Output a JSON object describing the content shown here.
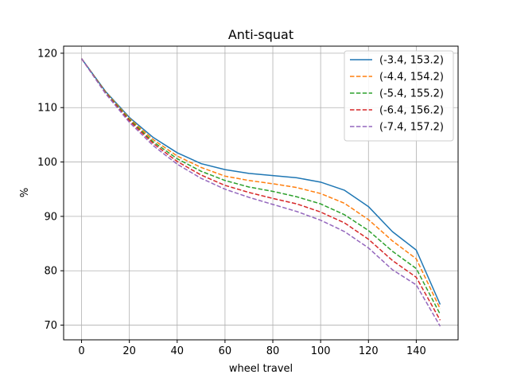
{
  "chart_data": {
    "type": "line",
    "title": "Anti-squat",
    "xlabel": "wheel travel",
    "ylabel": "%",
    "xlim": [
      -7.5,
      157.5
    ],
    "ylim": [
      67.3,
      121.3
    ],
    "xticks": [
      0,
      20,
      40,
      60,
      80,
      100,
      120,
      140
    ],
    "yticks": [
      70,
      80,
      90,
      100,
      110,
      120
    ],
    "grid": true,
    "legend_position": "upper-right",
    "x": [
      0,
      10,
      20,
      30,
      40,
      50,
      60,
      70,
      80,
      90,
      100,
      110,
      120,
      130,
      140,
      150
    ],
    "series": [
      {
        "name": "(-3.4, 153.2)",
        "color": "#1f77b4",
        "dash": "solid",
        "values": [
          119.0,
          113.0,
          108.2,
          104.5,
          101.7,
          99.7,
          98.6,
          97.9,
          97.5,
          97.1,
          96.3,
          94.8,
          91.8,
          87.2,
          83.8,
          73.8
        ]
      },
      {
        "name": "(-4.4, 154.2)",
        "color": "#ff7f0e",
        "dash": "dashed",
        "values": [
          119.0,
          112.9,
          108.0,
          104.1,
          101.1,
          99.0,
          97.4,
          96.6,
          96.0,
          95.3,
          94.2,
          92.4,
          89.4,
          85.5,
          82.2,
          73.0
        ]
      },
      {
        "name": "(-5.4, 155.2)",
        "color": "#2ca02c",
        "dash": "dashed",
        "values": [
          119.0,
          112.8,
          107.8,
          103.7,
          100.6,
          98.3,
          96.6,
          95.4,
          94.6,
          93.6,
          92.3,
          90.3,
          87.4,
          83.6,
          80.4,
          72.0
        ]
      },
      {
        "name": "(-6.4, 156.2)",
        "color": "#d62728",
        "dash": "dashed",
        "values": [
          119.0,
          112.7,
          107.6,
          103.4,
          100.1,
          97.6,
          95.7,
          94.4,
          93.3,
          92.3,
          90.8,
          88.8,
          85.8,
          81.9,
          78.8,
          70.9
        ]
      },
      {
        "name": "(-7.4, 157.2)",
        "color": "#9467bd",
        "dash": "dashed",
        "values": [
          119.0,
          112.6,
          107.3,
          103.0,
          99.6,
          97.0,
          95.0,
          93.5,
          92.2,
          90.9,
          89.3,
          87.2,
          84.2,
          80.2,
          77.4,
          69.8
        ]
      }
    ]
  }
}
